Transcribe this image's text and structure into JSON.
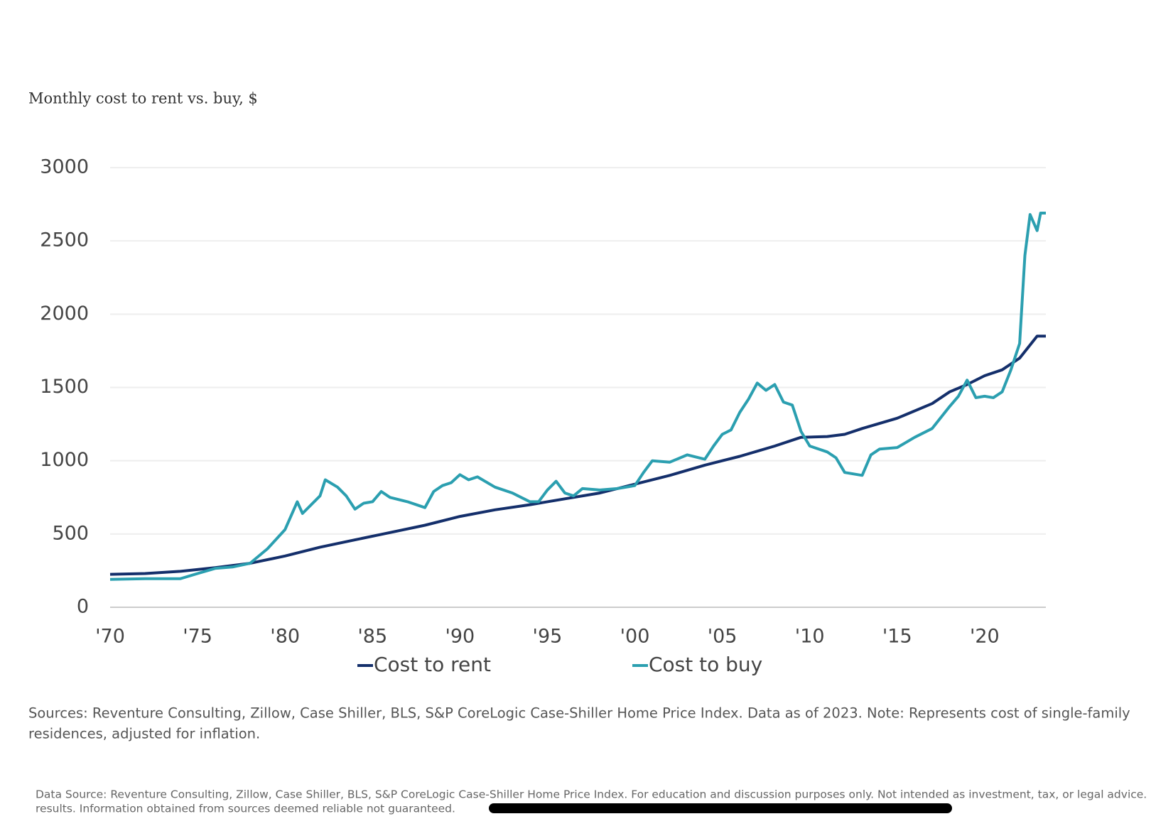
{
  "chart_data": {
    "type": "line",
    "title": "Monthly cost to rent vs. buy, $",
    "xlim": [
      1970,
      2023.5
    ],
    "xticks": [
      {
        "value": 1970,
        "label": "'70"
      },
      {
        "value": 1975,
        "label": "'75"
      },
      {
        "value": 1980,
        "label": "'80"
      },
      {
        "value": 1985,
        "label": "'85"
      },
      {
        "value": 1990,
        "label": "'90"
      },
      {
        "value": 1995,
        "label": "'95"
      },
      {
        "value": 2000,
        "label": "'00"
      },
      {
        "value": 2005,
        "label": "'05"
      },
      {
        "value": 2010,
        "label": "'10"
      },
      {
        "value": 2015,
        "label": "'15"
      },
      {
        "value": 2020,
        "label": "'20"
      }
    ],
    "ylim": [
      0,
      3000
    ],
    "yticks": [
      0,
      500,
      1000,
      1500,
      2000,
      2500,
      3000
    ],
    "grid": true,
    "legend": "bottom",
    "series": [
      {
        "name": "Cost to rent",
        "color": "#142f6b",
        "x": [
          1970,
          1972,
          1974,
          1976,
          1978,
          1980,
          1982,
          1984,
          1986,
          1988,
          1990,
          1992,
          1994,
          1996,
          1998,
          2000,
          2002,
          2004,
          2006,
          2008,
          2009.5,
          2011,
          2012,
          2013,
          2015,
          2017,
          2018,
          2019,
          2020,
          2021,
          2022,
          2023,
          2023.5
        ],
        "values": [
          225,
          230,
          245,
          270,
          300,
          350,
          410,
          460,
          510,
          560,
          620,
          665,
          700,
          740,
          780,
          840,
          900,
          970,
          1030,
          1100,
          1160,
          1165,
          1180,
          1220,
          1290,
          1390,
          1470,
          1520,
          1580,
          1620,
          1700,
          1850,
          1850
        ]
      },
      {
        "name": "Cost to buy",
        "color": "#2b9fb0",
        "x": [
          1970,
          1972,
          1974,
          1975,
          1976,
          1977,
          1978,
          1979,
          1980,
          1980.7,
          1981,
          1982,
          1982.3,
          1983,
          1983.5,
          1984,
          1984.5,
          1985,
          1985.5,
          1986,
          1987,
          1988,
          1988.5,
          1989,
          1989.5,
          1990,
          1990.5,
          1991,
          1992,
          1993,
          1993.5,
          1994,
          1994.5,
          1995,
          1995.5,
          1996,
          1996.5,
          1997,
          1998,
          1999,
          2000,
          2000.5,
          2001,
          2002,
          2003,
          2004,
          2004.5,
          2005,
          2005.5,
          2006,
          2006.5,
          2007,
          2007.5,
          2008,
          2008.5,
          2009,
          2009.5,
          2010,
          2011,
          2011.5,
          2012,
          2013,
          2013.5,
          2014,
          2015,
          2016,
          2017,
          2018,
          2018.5,
          2019,
          2019.5,
          2020,
          2020.5,
          2021,
          2021.5,
          2022,
          2022.3,
          2022.6,
          2023,
          2023.2,
          2023.5
        ],
        "values": [
          190,
          195,
          195,
          230,
          265,
          275,
          300,
          400,
          530,
          720,
          640,
          760,
          870,
          820,
          760,
          670,
          710,
          720,
          790,
          750,
          720,
          680,
          790,
          830,
          850,
          905,
          870,
          890,
          820,
          780,
          750,
          720,
          720,
          800,
          860,
          780,
          760,
          810,
          800,
          810,
          830,
          920,
          1000,
          990,
          1040,
          1010,
          1100,
          1180,
          1210,
          1330,
          1420,
          1530,
          1480,
          1520,
          1400,
          1380,
          1200,
          1100,
          1060,
          1020,
          920,
          900,
          1040,
          1080,
          1090,
          1160,
          1220,
          1370,
          1440,
          1550,
          1430,
          1440,
          1430,
          1470,
          1620,
          1800,
          2400,
          2680,
          2570,
          2690,
          2690
        ]
      }
    ]
  },
  "notes": [
    "Sources: Reventure Consulting, Zillow, Case Shiller, BLS, S&P CoreLogic Case-Shiller Home Price Index. Data as of 2023. Note: Represents cost of single-family",
    "residences, adjusted for inflation."
  ],
  "footer": [
    "Data Source: Reventure Consulting, Zillow, Case Shiller, BLS, S&P CoreLogic Case-Shiller Home Price Index. For education and discussion purposes only. Not intended as investment, tax, or legal advice. Past perform",
    "results. Information obtained from sources deemed reliable not guaranteed."
  ]
}
